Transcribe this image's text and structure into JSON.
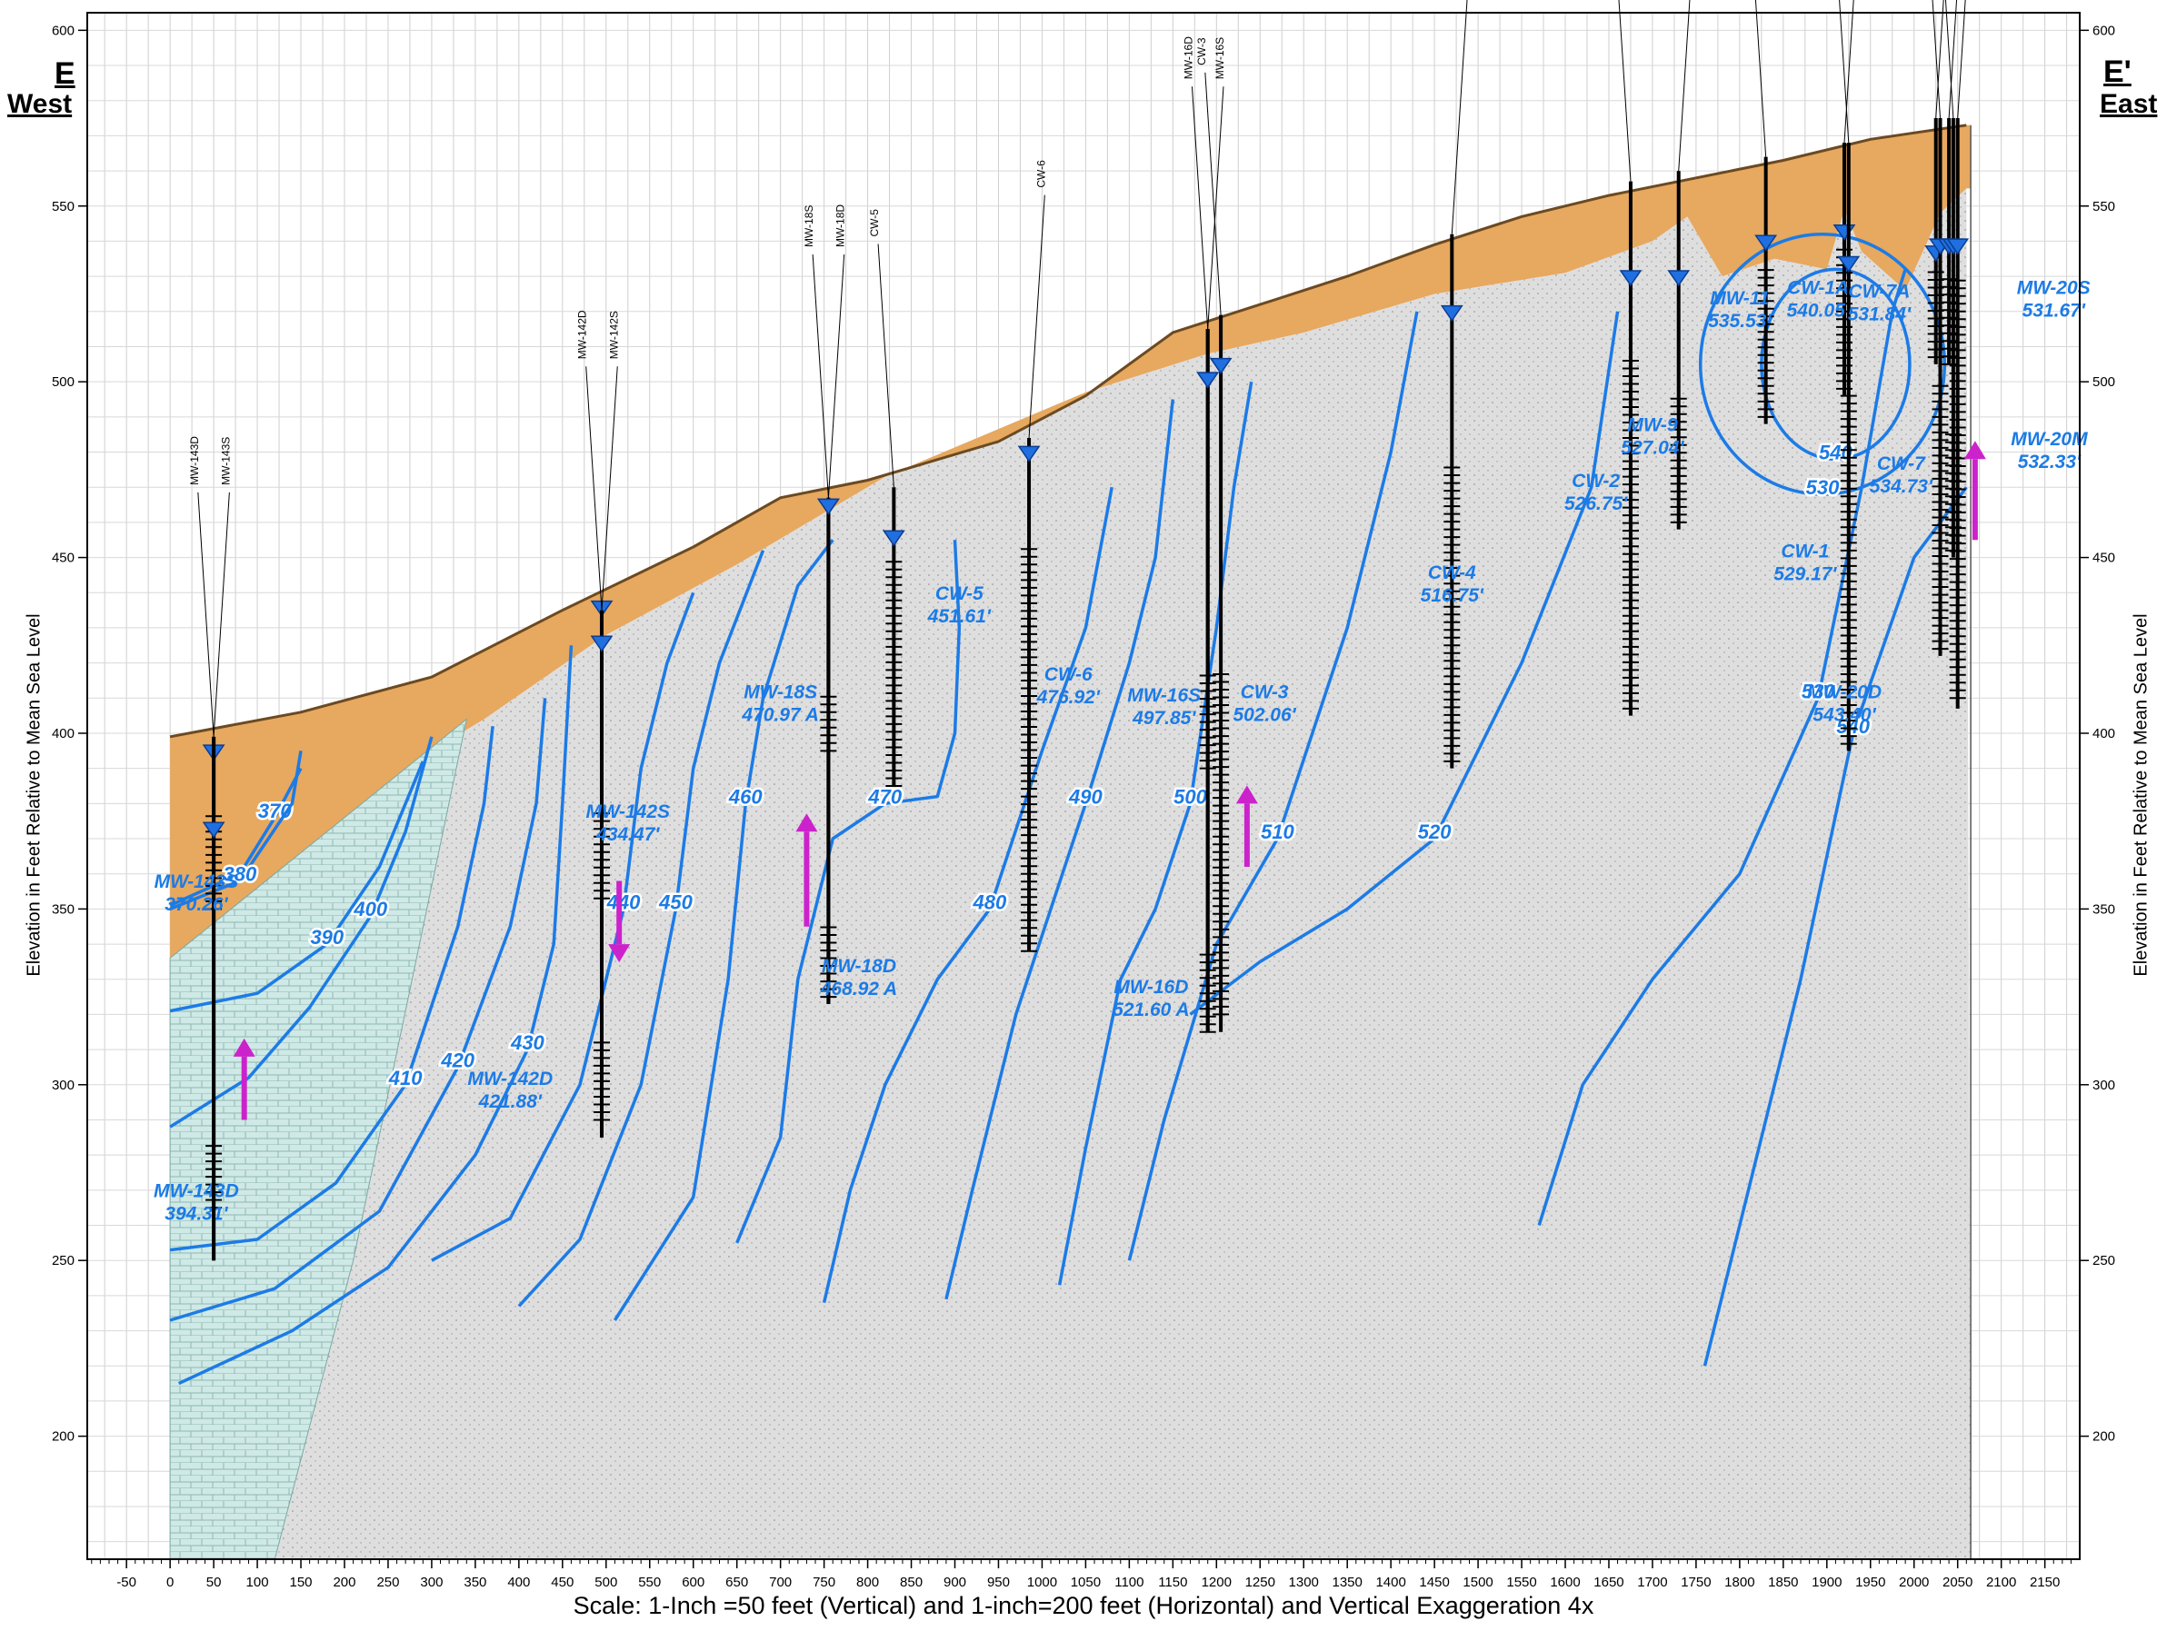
{
  "section": {
    "left_end": {
      "letter": "E",
      "direction": "West"
    },
    "right_end": {
      "letter": "E'",
      "direction": "East"
    },
    "y_axis_label": "Elevation in Feet Relative to Mean Sea Level",
    "scale_note": "Scale: 1-Inch =50 feet (Vertical) and 1-inch=200 feet (Horizontal) and Vertical Exaggeration 4x"
  },
  "axes": {
    "x_ticks": [
      -50,
      0,
      50,
      100,
      150,
      200,
      250,
      300,
      350,
      400,
      450,
      500,
      550,
      600,
      650,
      700,
      750,
      800,
      850,
      900,
      950,
      1000,
      1050,
      1100,
      1150,
      1200,
      1250,
      1300,
      1350,
      1400,
      1450,
      1500,
      1550,
      1600,
      1650,
      1700,
      1750,
      1800,
      1850,
      1900,
      1950,
      2000,
      2050,
      2100,
      2150
    ],
    "y_ticks": [
      200,
      250,
      300,
      350,
      400,
      450,
      500,
      550,
      600
    ],
    "x_range": [
      -95,
      2190
    ],
    "y_range": [
      165,
      605
    ]
  },
  "ground_surface": [
    [
      0,
      399
    ],
    [
      150,
      406
    ],
    [
      300,
      416
    ],
    [
      450,
      435
    ],
    [
      600,
      453
    ],
    [
      700,
      467
    ],
    [
      800,
      472
    ],
    [
      950,
      483
    ],
    [
      1050,
      496
    ],
    [
      1150,
      514
    ],
    [
      1250,
      522
    ],
    [
      1350,
      530
    ],
    [
      1450,
      539
    ],
    [
      1550,
      547
    ],
    [
      1650,
      553
    ],
    [
      1750,
      558
    ],
    [
      1850,
      563
    ],
    [
      1950,
      569
    ],
    [
      2060,
      573
    ]
  ],
  "bedrock_surface": [
    [
      0,
      336
    ],
    [
      100,
      337
    ],
    [
      150,
      347
    ],
    [
      200,
      360
    ],
    [
      260,
      380
    ],
    [
      320,
      398
    ],
    [
      360,
      404
    ],
    [
      500,
      428
    ],
    [
      650,
      448
    ],
    [
      820,
      473
    ],
    [
      1050,
      497
    ],
    [
      1190,
      508
    ],
    [
      1300,
      514
    ],
    [
      1450,
      525
    ],
    [
      1600,
      531
    ],
    [
      1700,
      540
    ],
    [
      1740,
      547
    ],
    [
      1780,
      530
    ],
    [
      1840,
      535
    ],
    [
      1900,
      532
    ],
    [
      1920,
      549
    ],
    [
      1940,
      537
    ],
    [
      1990,
      526
    ],
    [
      2030,
      548
    ],
    [
      2060,
      555
    ]
  ],
  "limestone_boundary": [
    [
      0,
      165
    ],
    [
      0,
      336
    ],
    [
      340,
      404
    ],
    [
      210,
      250
    ],
    [
      120,
      165
    ]
  ],
  "wells": [
    {
      "name": "MW-143D",
      "x": 50,
      "top": 399,
      "bottom": 250,
      "screen": [
        265,
        283
      ],
      "water": 394,
      "label": [
        "MW-143D",
        "394.31'"
      ]
    },
    {
      "name": "MW-143S",
      "x": 50,
      "top": 399,
      "bottom": 250,
      "screen": [
        350,
        378
      ],
      "water": 372,
      "label": [
        "MW-143S",
        "370.26'"
      ]
    },
    {
      "name": "MW-142D",
      "x": 495,
      "top": 435,
      "bottom": 285,
      "screen": [
        290,
        313
      ],
      "water": 435,
      "label": [
        "MW-142D",
        "421.88'"
      ]
    },
    {
      "name": "MW-142S",
      "x": 495,
      "top": 435,
      "bottom": 285,
      "screen": [
        353,
        378
      ],
      "water": 425,
      "label": [
        "MW-142S",
        "434.47'"
      ]
    },
    {
      "name": "MW-18S",
      "x": 755,
      "top": 467,
      "bottom": 323,
      "screen": [
        395,
        412
      ],
      "water": 464,
      "label": [
        "MW-18S",
        "470.97 A"
      ]
    },
    {
      "name": "MW-18D",
      "x": 755,
      "top": 467,
      "bottom": 323,
      "screen": [
        325,
        345
      ],
      "water": 464,
      "label": [
        "MW-18D",
        "468.92 A"
      ]
    },
    {
      "name": "CW-5",
      "x": 830,
      "top": 470,
      "bottom": 385,
      "screen": [
        385,
        450
      ],
      "water": 455,
      "label": [
        "CW-5",
        "451.61'"
      ]
    },
    {
      "name": "CW-6",
      "x": 985,
      "top": 484,
      "bottom": 338,
      "screen": [
        338,
        453
      ],
      "water": 479,
      "label": [
        "CW-6",
        "476.92'"
      ]
    },
    {
      "name": "MW-16D",
      "x": 1190,
      "top": 515,
      "bottom": 315,
      "screen": [
        315,
        338
      ],
      "water": 500,
      "label": [
        "MW-16D",
        "521.60 A"
      ]
    },
    {
      "name": "MW-16S",
      "x": 1190,
      "top": 515,
      "bottom": 315,
      "screen": [
        390,
        418
      ],
      "water": 500,
      "label": [
        "MW-16S",
        "497.85'"
      ]
    },
    {
      "name": "CW-3",
      "x": 1205,
      "top": 519,
      "bottom": 315,
      "screen": [
        320,
        418
      ],
      "water": 504,
      "label": [
        "CW-3",
        "502.06'"
      ]
    },
    {
      "name": "CW-4",
      "x": 1470,
      "top": 542,
      "bottom": 390,
      "screen": [
        392,
        477
      ],
      "water": 519,
      "label": [
        "CW-4",
        "516.75'"
      ]
    },
    {
      "name": "CW-2",
      "x": 1675,
      "top": 557,
      "bottom": 405,
      "screen": [
        407,
        506
      ],
      "water": 529,
      "label": [
        "CW-2",
        "526.75'"
      ]
    },
    {
      "name": "MW-9",
      "x": 1730,
      "top": 560,
      "bottom": 458,
      "screen": [
        460,
        496
      ],
      "water": 529,
      "label": [
        "MW-9",
        "527.04'"
      ]
    },
    {
      "name": "MW-11",
      "x": 1830,
      "top": 564,
      "bottom": 488,
      "screen": [
        490,
        533
      ],
      "water": 539,
      "label": [
        "MW-11",
        "535.53'"
      ]
    },
    {
      "name": "CW-1A",
      "x": 1920,
      "top": 568,
      "bottom": 496,
      "screen": [
        498,
        538
      ],
      "water": 542,
      "label": [
        "CW-1A",
        "540.05'"
      ]
    },
    {
      "name": "CW-1",
      "x": 1925,
      "top": 568,
      "bottom": 395,
      "screen": [
        397,
        497
      ],
      "water": 533,
      "label": [
        "CW-1",
        "529.17'"
      ]
    },
    {
      "name": "CW-7A",
      "x": 2025,
      "top": 575,
      "bottom": 505,
      "screen": [
        507,
        533
      ],
      "water": 536,
      "label": [
        "CW-7A",
        "531.84'"
      ]
    },
    {
      "name": "CW-7",
      "x": 2030,
      "top": 575,
      "bottom": 422,
      "screen": [
        424,
        500
      ],
      "water": 538,
      "label": [
        "CW-7",
        "534.73'"
      ]
    },
    {
      "name": "MW-20S",
      "x": 2040,
      "top": 575,
      "bottom": 505,
      "screen": [
        505,
        530
      ],
      "water": 538,
      "label": [
        "MW-20S",
        "531.67'"
      ]
    },
    {
      "name": "MW-20M",
      "x": 2045,
      "top": 575,
      "bottom": 450,
      "screen": [
        452,
        485
      ],
      "water": 538,
      "label": [
        "MW-20M",
        "532.33'"
      ]
    },
    {
      "name": "MW-20D",
      "x": 2050,
      "top": 575,
      "bottom": 407,
      "screen": [
        410,
        530
      ],
      "water": 538,
      "label": [
        "MW-20D",
        "543.40'"
      ]
    }
  ],
  "contours": [
    {
      "value": "370",
      "dashed": false,
      "points": [
        [
          0,
          351
        ],
        [
          80,
          360
        ],
        [
          120,
          376
        ],
        [
          150,
          390
        ]
      ]
    },
    {
      "value": "380",
      "dashed": false,
      "points": [
        [
          150,
          395
        ],
        [
          140,
          380
        ],
        [
          80,
          358
        ],
        [
          0,
          350
        ]
      ]
    },
    {
      "value": "390",
      "dashed": false,
      "points": [
        [
          0,
          321
        ],
        [
          100,
          326
        ],
        [
          180,
          340
        ],
        [
          240,
          362
        ],
        [
          290,
          392
        ]
      ]
    },
    {
      "value": "400",
      "dashed": false,
      "points": [
        [
          0,
          288
        ],
        [
          90,
          302
        ],
        [
          160,
          322
        ],
        [
          230,
          348
        ],
        [
          270,
          372
        ],
        [
          300,
          399
        ]
      ]
    },
    {
      "value": "410",
      "dashed": true,
      "points": [
        [
          0,
          253
        ],
        [
          100,
          256
        ],
        [
          190,
          272
        ],
        [
          270,
          300
        ],
        [
          330,
          345
        ],
        [
          360,
          380
        ],
        [
          370,
          402
        ]
      ]
    },
    {
      "value": "420",
      "dashed": true,
      "points": [
        [
          0,
          233
        ],
        [
          120,
          242
        ],
        [
          240,
          264
        ],
        [
          330,
          305
        ],
        [
          390,
          345
        ],
        [
          420,
          380
        ],
        [
          430,
          410
        ]
      ]
    },
    {
      "value": "430",
      "dashed": true,
      "points": [
        [
          10,
          215
        ],
        [
          140,
          230
        ],
        [
          250,
          248
        ],
        [
          350,
          280
        ],
        [
          410,
          310
        ],
        [
          440,
          340
        ],
        [
          450,
          380
        ],
        [
          460,
          425
        ]
      ]
    },
    {
      "value": "440",
      "dashed": true,
      "points": [
        [
          300,
          250
        ],
        [
          390,
          262
        ],
        [
          470,
          300
        ],
        [
          520,
          350
        ],
        [
          540,
          390
        ],
        [
          570,
          420
        ],
        [
          600,
          440
        ]
      ]
    },
    {
      "value": "450",
      "dashed": true,
      "points": [
        [
          400,
          237
        ],
        [
          470,
          256
        ],
        [
          540,
          300
        ],
        [
          580,
          350
        ],
        [
          600,
          390
        ],
        [
          630,
          420
        ],
        [
          680,
          452
        ]
      ]
    },
    {
      "value": "460",
      "dashed": true,
      "points": [
        [
          510,
          233
        ],
        [
          600,
          268
        ],
        [
          640,
          330
        ],
        [
          660,
          380
        ],
        [
          680,
          410
        ],
        [
          720,
          442
        ],
        [
          760,
          455
        ]
      ]
    },
    {
      "value": "470",
      "dashed": true,
      "points": [
        [
          650,
          255
        ],
        [
          700,
          285
        ],
        [
          720,
          330
        ],
        [
          760,
          370
        ],
        [
          820,
          380
        ],
        [
          880,
          382
        ],
        [
          900,
          400
        ],
        [
          905,
          430
        ],
        [
          900,
          455
        ]
      ]
    },
    {
      "value": "480",
      "dashed": true,
      "points": [
        [
          750,
          238
        ],
        [
          780,
          270
        ],
        [
          820,
          300
        ],
        [
          880,
          330
        ],
        [
          940,
          350
        ],
        [
          1000,
          395
        ],
        [
          1050,
          430
        ],
        [
          1080,
          470
        ]
      ]
    },
    {
      "value": "490",
      "dashed": true,
      "points": [
        [
          890,
          239
        ],
        [
          920,
          270
        ],
        [
          970,
          320
        ],
        [
          1010,
          350
        ],
        [
          1050,
          380
        ],
        [
          1100,
          420
        ],
        [
          1130,
          450
        ],
        [
          1150,
          495
        ]
      ]
    },
    {
      "value": "500",
      "dashed": true,
      "points": [
        [
          1020,
          243
        ],
        [
          1050,
          282
        ],
        [
          1090,
          330
        ],
        [
          1130,
          350
        ],
        [
          1170,
          380
        ],
        [
          1200,
          430
        ],
        [
          1220,
          470
        ],
        [
          1240,
          500
        ]
      ]
    },
    {
      "value": "510",
      "dashed": true,
      "points": [
        [
          1100,
          250
        ],
        [
          1140,
          290
        ],
        [
          1200,
          340
        ],
        [
          1270,
          370
        ],
        [
          1350,
          430
        ],
        [
          1400,
          480
        ],
        [
          1430,
          520
        ]
      ]
    },
    {
      "value": "520",
      "dashed": false,
      "points": [
        [
          1170,
          320
        ],
        [
          1250,
          335
        ],
        [
          1350,
          350
        ],
        [
          1450,
          370
        ],
        [
          1550,
          420
        ],
        [
          1630,
          470
        ],
        [
          1660,
          520
        ]
      ]
    },
    {
      "value": "530",
      "dashed": true,
      "points": [
        [
          1570,
          260
        ],
        [
          1620,
          300
        ],
        [
          1700,
          330
        ],
        [
          1800,
          360
        ],
        [
          1890,
          410
        ],
        [
          1940,
          470
        ],
        [
          1975,
          520
        ],
        [
          1990,
          532
        ]
      ]
    },
    {
      "value": "540",
      "dashed": true,
      "points": [
        [
          1760,
          220
        ],
        [
          1810,
          270
        ],
        [
          1870,
          330
        ],
        [
          1930,
          400
        ],
        [
          2000,
          450
        ],
        [
          2060,
          470
        ]
      ]
    }
  ],
  "mound_540": {
    "value": "540",
    "center": [
      1910,
      505
    ],
    "rx": 85,
    "ry": 27
  },
  "mound_530": {
    "value": "530",
    "center": [
      1895,
      505
    ],
    "rx": 140,
    "ry": 37
  },
  "vertical_gradient_arrows": [
    {
      "x": 85,
      "from": 290,
      "to": 308,
      "dir": "up"
    },
    {
      "x": 515,
      "from": 358,
      "to": 340,
      "dir": "down"
    },
    {
      "x": 730,
      "from": 345,
      "to": 372,
      "dir": "up"
    },
    {
      "x": 1235,
      "from": 362,
      "to": 380,
      "dir": "up"
    },
    {
      "x": 2070,
      "from": 455,
      "to": 478,
      "dir": "up"
    }
  ],
  "colors": {
    "fill": "#e7a85f",
    "silt": "#dedede",
    "limestone": "#cfe9e6",
    "water": "#1f6fe0",
    "contour": "#1c7be6",
    "arrow": "#cc22cc"
  }
}
